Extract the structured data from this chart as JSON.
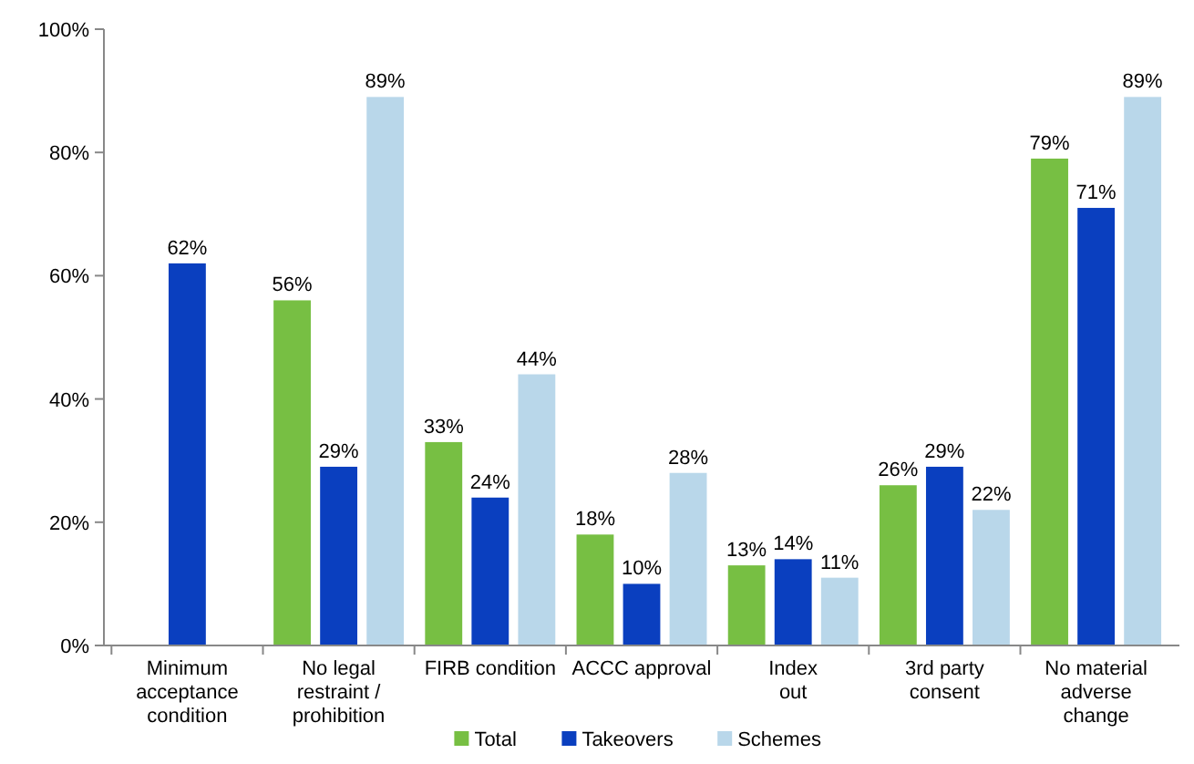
{
  "chart_data": {
    "type": "bar",
    "categories": [
      "Minimum\nacceptance\ncondition",
      "No legal\nrestraint /\nprohibition",
      "FIRB condition",
      "ACCC approval",
      "Index\nout",
      "3rd party\nconsent",
      "No material\nadverse\nchange"
    ],
    "series": [
      {
        "name": "Total",
        "color": "#77bf43",
        "values": [
          null,
          56,
          33,
          18,
          13,
          26,
          79
        ],
        "value_labels": [
          null,
          "56%",
          "33%",
          "18%",
          "13%",
          "26%",
          "79%"
        ]
      },
      {
        "name": "Takeovers",
        "color": "#0a3fbf",
        "values": [
          62,
          29,
          24,
          10,
          14,
          29,
          71
        ],
        "value_labels": [
          "62%",
          "29%",
          "24%",
          "10%",
          "14%",
          "29%",
          "71%"
        ]
      },
      {
        "name": "Schemes",
        "color": "#b9d7ea",
        "values": [
          null,
          89,
          44,
          28,
          11,
          22,
          89
        ],
        "value_labels": [
          null,
          "89%",
          "44%",
          "28%",
          "11%",
          "22%",
          "89%"
        ]
      }
    ],
    "ylim": [
      0,
      100
    ],
    "yticks": [
      {
        "value": 0,
        "label": "0%"
      },
      {
        "value": 20,
        "label": "20%"
      },
      {
        "value": 40,
        "label": "40%"
      },
      {
        "value": 60,
        "label": "60%"
      },
      {
        "value": 80,
        "label": "80%"
      },
      {
        "value": 100,
        "label": "100%"
      }
    ],
    "grid": false,
    "legend": "bottom"
  }
}
